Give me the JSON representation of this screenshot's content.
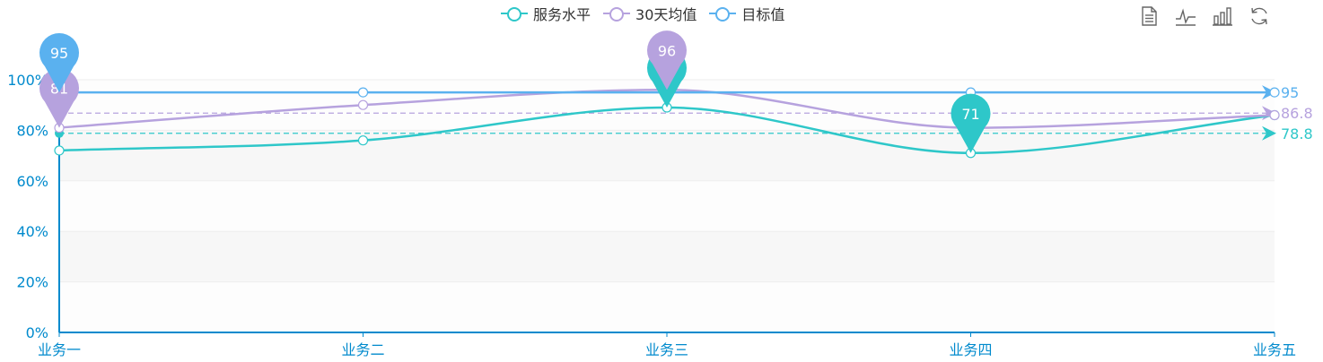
{
  "legend": {
    "items": [
      {
        "label": "服务水平",
        "color": "#2ec7c9"
      },
      {
        "label": "30天均值",
        "color": "#b6a2de"
      },
      {
        "label": "目标值",
        "color": "#5ab1ef"
      }
    ]
  },
  "toolbox": {
    "icons": [
      "data-view-icon",
      "line-chart-icon",
      "bar-chart-icon",
      "restore-icon"
    ]
  },
  "chart_data": {
    "type": "line",
    "categories": [
      "业务一",
      "业务二",
      "业务三",
      "业务四",
      "业务五"
    ],
    "ylim": [
      0,
      100
    ],
    "yticks": [
      "0%",
      "20%",
      "40%",
      "60%",
      "80%",
      "100%"
    ],
    "series": [
      {
        "name": "服务水平",
        "color": "#2ec7c9",
        "values": [
          72,
          76,
          89,
          71,
          86
        ],
        "markPoints": [
          {
            "index": 2,
            "value": "89"
          },
          {
            "index": 3,
            "value": "71"
          }
        ],
        "markLine": {
          "value": 78.8,
          "label": "78.8"
        }
      },
      {
        "name": "30天均值",
        "color": "#b6a2de",
        "values": [
          81,
          90,
          96,
          81,
          86
        ],
        "markPoints": [
          {
            "index": 2,
            "value": "96"
          },
          {
            "index": 0,
            "value": "81"
          }
        ],
        "markLine": {
          "value": 86.8,
          "label": "86.8"
        }
      },
      {
        "name": "目标值",
        "color": "#5ab1ef",
        "values": [
          95,
          95,
          95,
          95,
          95
        ],
        "markPoints": [
          {
            "index": 0,
            "value": "95"
          }
        ],
        "markLine": {
          "value": 95,
          "label": "95"
        }
      }
    ]
  }
}
